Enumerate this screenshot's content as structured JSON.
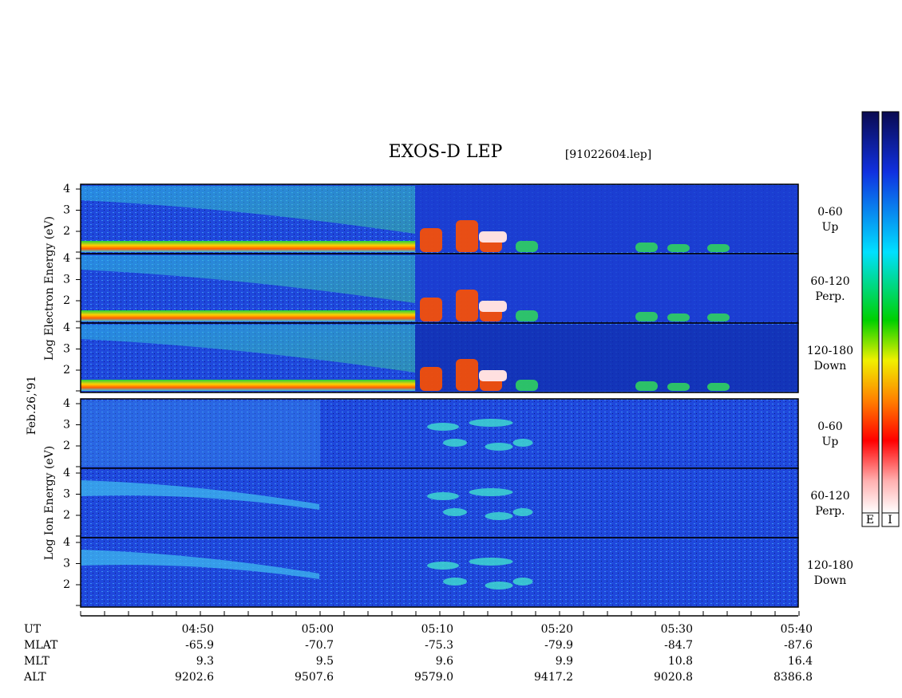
{
  "title": "EXOS-D LEP",
  "file": "[91022604.lep]",
  "date_label": "Feb.26,'91",
  "groups": [
    {
      "axis_label": "Log Electron Energy (eV)",
      "kind": "electron",
      "panels": [
        {
          "label_lines": [
            "0-60",
            "Up"
          ],
          "yticks": [
            "4",
            "3",
            "2"
          ]
        },
        {
          "label_lines": [
            "60-120",
            "Perp."
          ],
          "yticks": [
            "4",
            "3",
            "2"
          ]
        },
        {
          "label_lines": [
            "120-180",
            "Down"
          ],
          "yticks": [
            "4",
            "3",
            "2"
          ]
        }
      ]
    },
    {
      "axis_label": "Log Ion Energy (eV)",
      "kind": "ion",
      "panels": [
        {
          "label_lines": [
            "0-60",
            "Up"
          ],
          "yticks": [
            "4",
            "3",
            "2"
          ]
        },
        {
          "label_lines": [
            "60-120",
            "Perp."
          ],
          "yticks": [
            "4",
            "3",
            "2"
          ]
        },
        {
          "label_lines": [
            "120-180",
            "Down"
          ],
          "yticks": [
            "4",
            "3",
            "2"
          ]
        }
      ]
    }
  ],
  "time_axis": {
    "rows": [
      {
        "name": "UT",
        "values": [
          "04:50",
          "05:00",
          "05:10",
          "05:20",
          "05:30",
          "05:40"
        ]
      },
      {
        "name": "MLAT",
        "values": [
          "-65.9",
          "-70.7",
          "-75.3",
          "-79.9",
          "-84.7",
          "-87.6"
        ]
      },
      {
        "name": "MLT",
        "values": [
          "9.3",
          "9.5",
          "9.6",
          "9.9",
          "10.8",
          "16.4"
        ]
      },
      {
        "name": "ALT",
        "values": [
          "9202.6",
          "9507.6",
          "9579.0",
          "9417.2",
          "9020.8",
          "8386.8"
        ]
      }
    ]
  },
  "colorbar_labels": [
    "E",
    "I"
  ]
}
